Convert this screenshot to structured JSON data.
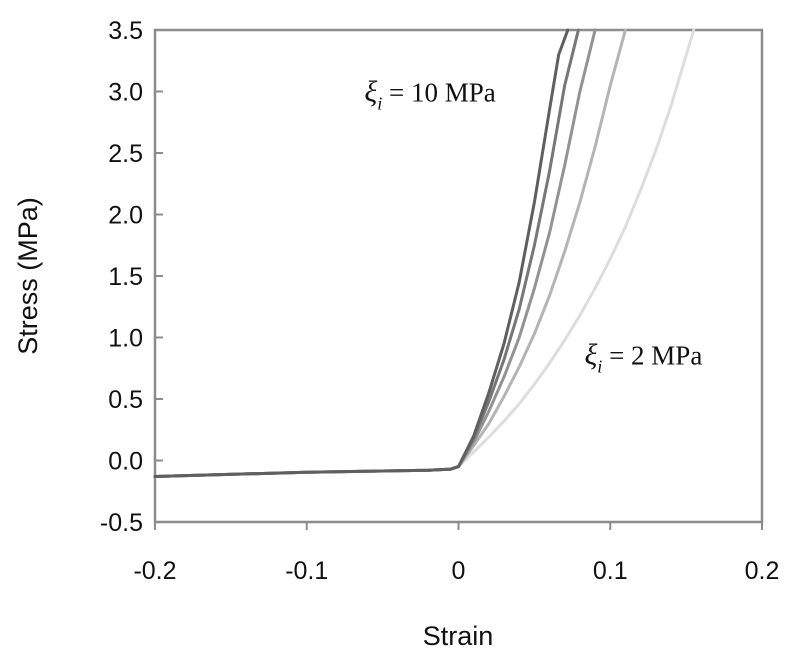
{
  "chart_data": {
    "type": "line",
    "title": "",
    "xlabel": "Strain",
    "ylabel": "Stress (MPa)",
    "xlim": [
      -0.2,
      0.2
    ],
    "ylim": [
      -0.5,
      3.5
    ],
    "xticks": [
      -0.2,
      -0.1,
      0,
      0.1,
      0.2
    ],
    "xtick_labels": [
      "-0.2",
      "-0.1",
      "0",
      "0.1",
      "0.2"
    ],
    "yticks": [
      -0.5,
      0.0,
      0.5,
      1.0,
      1.5,
      2.0,
      2.5,
      3.0,
      3.5
    ],
    "ytick_labels": [
      "-0.5",
      "0.0",
      "0.5",
      "1.0",
      "1.5",
      "2.0",
      "2.5",
      "3.0",
      "3.5"
    ],
    "grid": false,
    "legend": "none",
    "series": [
      {
        "color": "#5f5f5f",
        "x": [
          -0.2,
          -0.1,
          -0.05,
          -0.02,
          -0.005,
          0,
          0.01,
          0.02,
          0.03,
          0.04,
          0.05,
          0.06,
          0.066,
          0.072
        ],
        "y": [
          -0.13,
          -0.095,
          -0.085,
          -0.08,
          -0.07,
          -0.05,
          0.2,
          0.55,
          0.95,
          1.45,
          2.1,
          2.85,
          3.3,
          3.5
        ]
      },
      {
        "color": "#777777",
        "x": [
          -0.2,
          -0.1,
          -0.05,
          -0.02,
          -0.005,
          0,
          0.01,
          0.02,
          0.03,
          0.04,
          0.05,
          0.06,
          0.07,
          0.079
        ],
        "y": [
          -0.13,
          -0.095,
          -0.085,
          -0.08,
          -0.07,
          -0.05,
          0.18,
          0.48,
          0.82,
          1.23,
          1.75,
          2.35,
          3.05,
          3.5
        ]
      },
      {
        "color": "#939393",
        "x": [
          -0.2,
          -0.1,
          -0.05,
          -0.02,
          -0.005,
          0,
          0.01,
          0.02,
          0.03,
          0.04,
          0.05,
          0.06,
          0.07,
          0.08,
          0.09
        ],
        "y": [
          -0.13,
          -0.095,
          -0.085,
          -0.08,
          -0.07,
          -0.05,
          0.15,
          0.4,
          0.68,
          1.0,
          1.4,
          1.85,
          2.4,
          3.0,
          3.5
        ]
      },
      {
        "color": "#b4b4b4",
        "x": [
          -0.2,
          -0.1,
          -0.05,
          -0.02,
          -0.005,
          0,
          0.01,
          0.02,
          0.03,
          0.04,
          0.05,
          0.06,
          0.07,
          0.08,
          0.09,
          0.1,
          0.11
        ],
        "y": [
          -0.13,
          -0.095,
          -0.085,
          -0.08,
          -0.07,
          -0.05,
          0.12,
          0.3,
          0.52,
          0.76,
          1.03,
          1.34,
          1.7,
          2.1,
          2.55,
          3.05,
          3.5
        ]
      },
      {
        "color": "#dddddd",
        "x": [
          -0.2,
          -0.1,
          -0.05,
          -0.02,
          -0.005,
          0,
          0.01,
          0.02,
          0.03,
          0.04,
          0.05,
          0.06,
          0.07,
          0.08,
          0.09,
          0.1,
          0.11,
          0.12,
          0.13,
          0.14,
          0.155
        ],
        "y": [
          -0.13,
          -0.095,
          -0.085,
          -0.08,
          -0.07,
          -0.05,
          0.07,
          0.19,
          0.32,
          0.46,
          0.62,
          0.79,
          0.98,
          1.18,
          1.4,
          1.64,
          1.9,
          2.2,
          2.52,
          2.88,
          3.5
        ]
      }
    ],
    "annotations": [
      {
        "symbol": "ξ",
        "subscript": "i",
        "text": " = 10 MPa",
        "x": -0.062,
        "y": 2.92
      },
      {
        "symbol": "ξ",
        "subscript": "i",
        "text": " = 2 MPa",
        "x": 0.083,
        "y": 0.78
      }
    ]
  }
}
